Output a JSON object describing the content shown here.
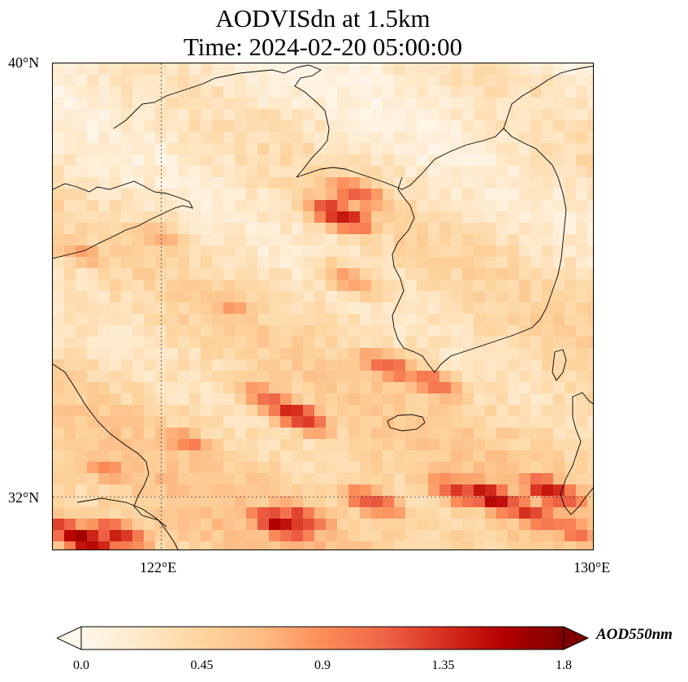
{
  "title": {
    "line1": "AODVISdn at 1.5km",
    "line2": "Time: 2024-02-20 05:00:00"
  },
  "map": {
    "extent": {
      "lon_min": 120,
      "lon_max": 130,
      "lat_min": 31,
      "lat_max": 40
    },
    "lat_ticks": [
      {
        "value": 40,
        "label": "40°N"
      },
      {
        "value": 32,
        "label": "32°N"
      }
    ],
    "lon_ticks": [
      {
        "value": 122,
        "label": "122°E"
      },
      {
        "value": 130,
        "label": "130°E"
      }
    ],
    "gridlines": "dotted",
    "high_aod_regions": [
      {
        "lon": 125.3,
        "lat": 37.2,
        "value": 1.5
      },
      {
        "lon": 125.6,
        "lat": 37.6,
        "value": 1.2
      },
      {
        "lon": 124.5,
        "lat": 33.5,
        "value": 1.45
      },
      {
        "lon": 124.0,
        "lat": 33.8,
        "value": 1.1
      },
      {
        "lon": 126.2,
        "lat": 34.4,
        "value": 1.15
      },
      {
        "lon": 127.0,
        "lat": 34.1,
        "value": 1.1
      },
      {
        "lon": 128.1,
        "lat": 32.0,
        "value": 1.6
      },
      {
        "lon": 127.5,
        "lat": 32.1,
        "value": 1.3
      },
      {
        "lon": 129.2,
        "lat": 32.1,
        "value": 1.5
      },
      {
        "lon": 128.8,
        "lat": 31.7,
        "value": 1.3
      },
      {
        "lon": 124.2,
        "lat": 31.5,
        "value": 1.6
      },
      {
        "lon": 124.6,
        "lat": 31.6,
        "value": 1.3
      },
      {
        "lon": 125.9,
        "lat": 31.9,
        "value": 1.2
      },
      {
        "lon": 120.6,
        "lat": 31.2,
        "value": 1.75
      },
      {
        "lon": 121.2,
        "lat": 31.3,
        "value": 1.4
      },
      {
        "lon": 120.2,
        "lat": 31.4,
        "value": 1.3
      },
      {
        "lon": 122.5,
        "lat": 33.0,
        "value": 0.95
      },
      {
        "lon": 121.0,
        "lat": 32.5,
        "value": 0.9
      },
      {
        "lon": 123.3,
        "lat": 35.5,
        "value": 0.8
      },
      {
        "lon": 122.0,
        "lat": 36.8,
        "value": 0.75
      },
      {
        "lon": 120.5,
        "lat": 36.5,
        "value": 0.8
      },
      {
        "lon": 125.5,
        "lat": 36.0,
        "value": 0.85
      },
      {
        "lon": 129.6,
        "lat": 31.4,
        "value": 1.1
      }
    ]
  },
  "colorbar": {
    "label": "AOD550nm",
    "min": 0.0,
    "max": 1.8,
    "colormap": "OrRd",
    "extend": "both",
    "ticks": [
      {
        "value": 0.0,
        "label": "0.0"
      },
      {
        "value": 0.45,
        "label": "0.45"
      },
      {
        "value": 0.9,
        "label": "0.9"
      },
      {
        "value": 1.35,
        "label": "1.35"
      },
      {
        "value": 1.8,
        "label": "1.8"
      }
    ],
    "colors": [
      "#fff7ec",
      "#fee8c8",
      "#fdd49e",
      "#fdbb84",
      "#fc8d59",
      "#ef6548",
      "#d7301f",
      "#b30000",
      "#7f0000"
    ]
  }
}
